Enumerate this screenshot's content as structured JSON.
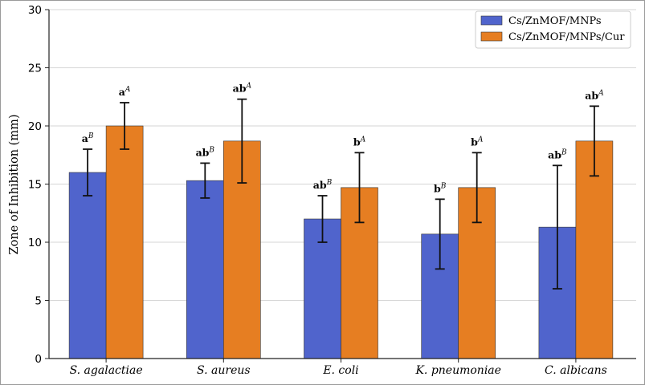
{
  "chart_data": {
    "type": "bar",
    "title": "",
    "xlabel": "",
    "ylabel": "Zone of Inhibition (mm)",
    "ylim": [
      0,
      30
    ],
    "yticks": [
      0,
      5,
      10,
      15,
      20,
      25,
      30
    ],
    "grid": "horizontal",
    "legend_position": "top-right",
    "categories": [
      "S. agalactiae",
      "S. aureus",
      "E. coli",
      "K. pneumoniae",
      "C. albicans"
    ],
    "series": [
      {
        "name": "Cs/ZnMOF/MNPs",
        "color": "#5064cc",
        "values": [
          16.0,
          15.3,
          12.0,
          10.7,
          11.3
        ],
        "errors": [
          2.0,
          1.5,
          2.0,
          3.0,
          5.3
        ],
        "labels": [
          {
            "base": "a",
            "sup": "B"
          },
          {
            "base": "ab",
            "sup": "B"
          },
          {
            "base": "ab",
            "sup": "B"
          },
          {
            "base": "b",
            "sup": "B"
          },
          {
            "base": "ab",
            "sup": "B"
          }
        ]
      },
      {
        "name": "Cs/ZnMOF/MNPs/Cur",
        "color": "#e67e22",
        "values": [
          20.0,
          18.7,
          14.7,
          14.7,
          18.7
        ],
        "errors": [
          2.0,
          3.6,
          3.0,
          3.0,
          3.0
        ],
        "labels": [
          {
            "base": "a",
            "sup": "A"
          },
          {
            "base": "ab",
            "sup": "A"
          },
          {
            "base": "b",
            "sup": "A"
          },
          {
            "base": "b",
            "sup": "A"
          },
          {
            "base": "ab",
            "sup": "A"
          }
        ]
      }
    ]
  }
}
